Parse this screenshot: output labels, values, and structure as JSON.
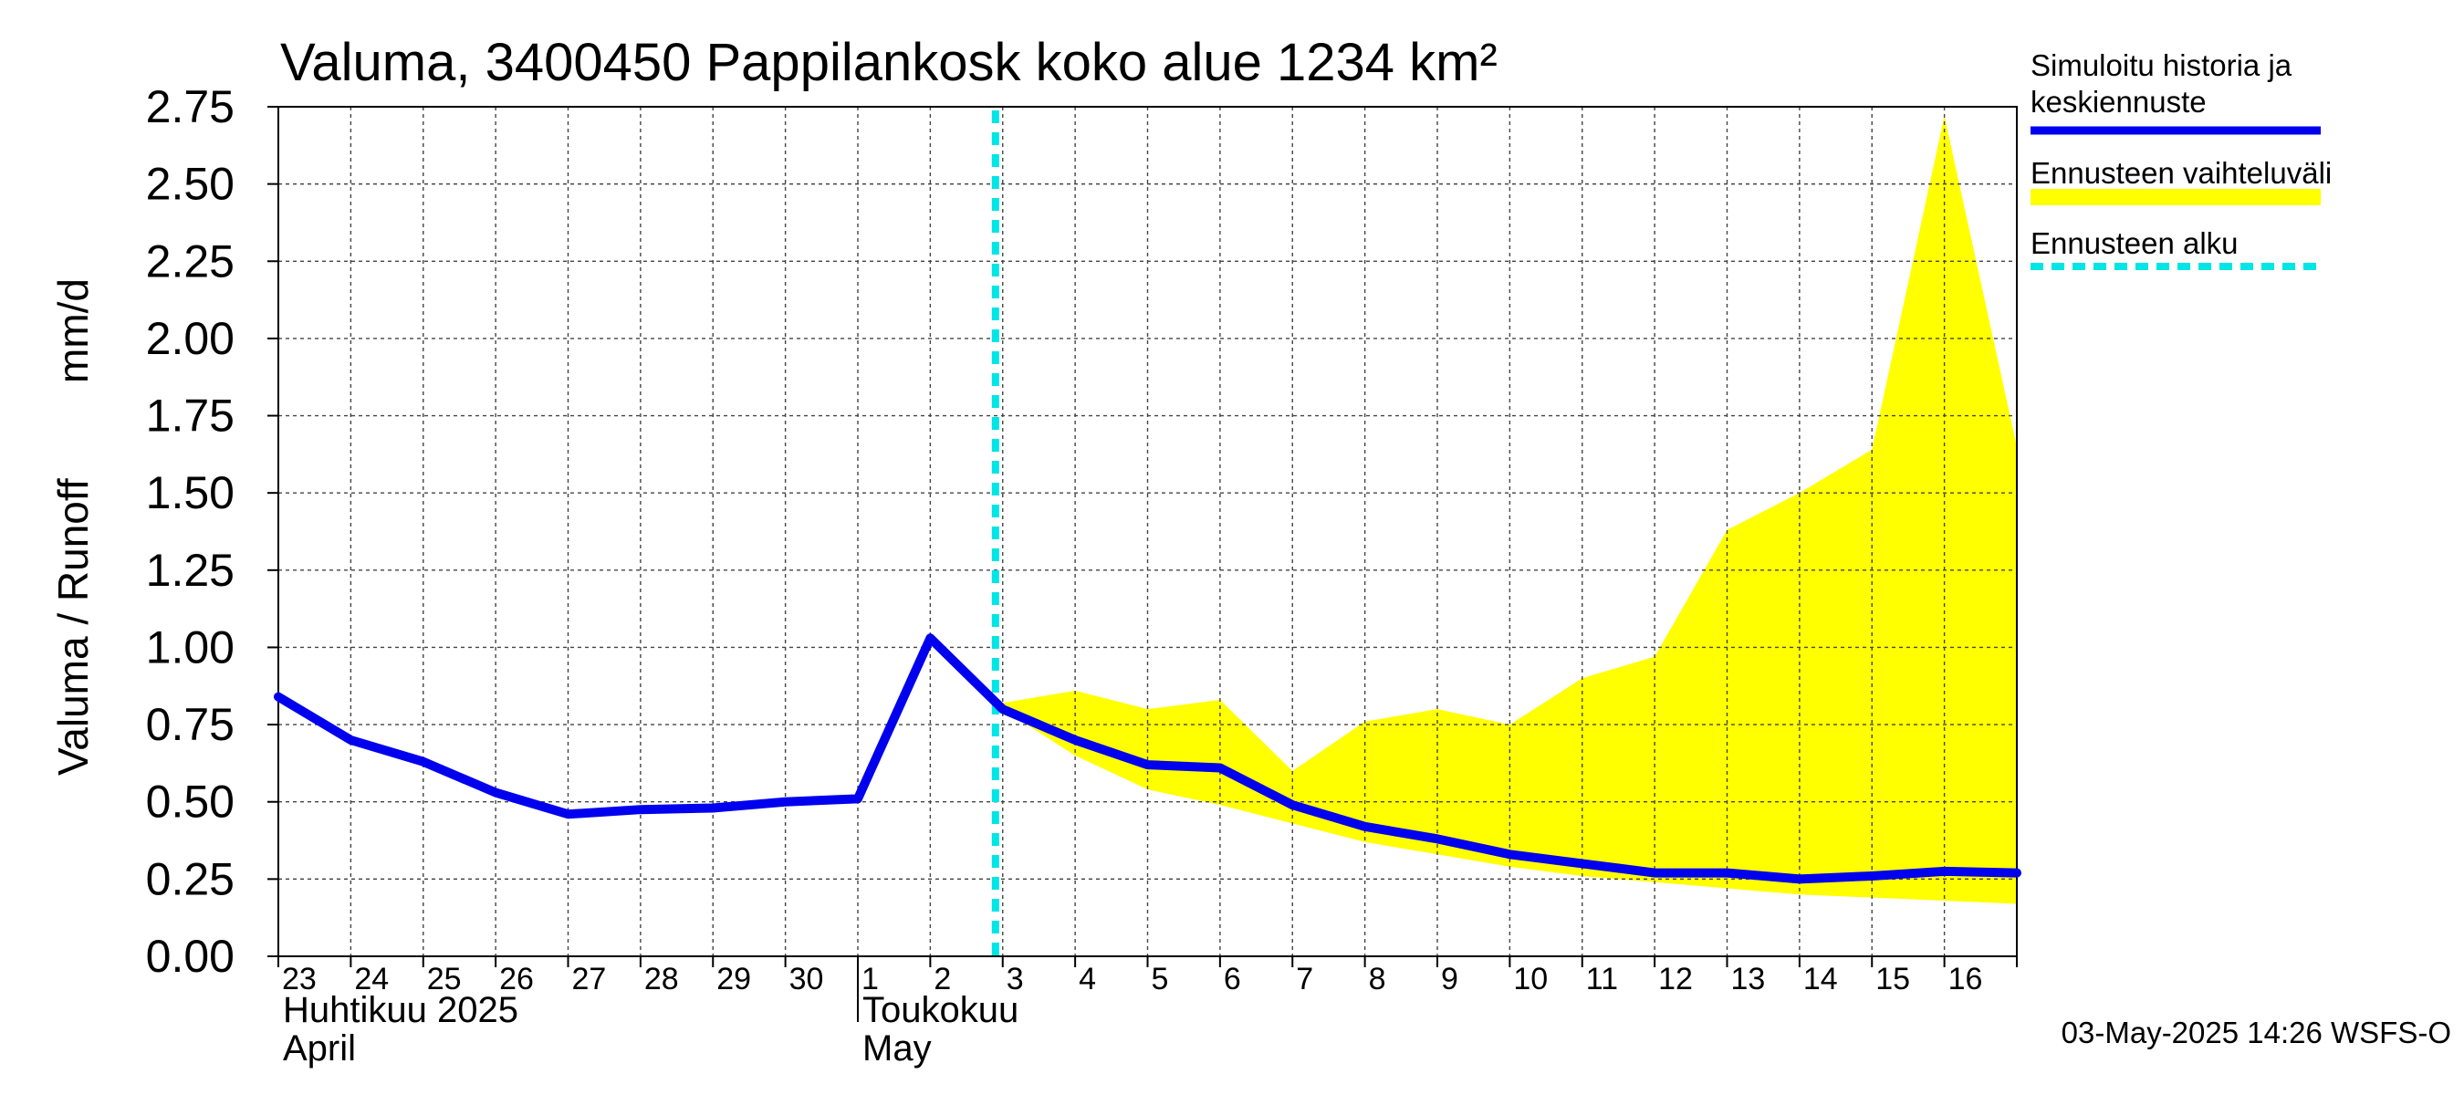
{
  "chart_data": {
    "type": "line",
    "title": "Valuma, 3400450 Pappilankosk koko alue 1234 km²",
    "ylabel_left": "Valuma / Runoff",
    "ylabel_right": "mm/d",
    "ylim": [
      0,
      2.75
    ],
    "yticks": [
      "0.00",
      "0.25",
      "0.50",
      "0.75",
      "1.00",
      "1.25",
      "1.50",
      "1.75",
      "2.00",
      "2.25",
      "2.50",
      "2.75"
    ],
    "xticks": [
      "23",
      "24",
      "25",
      "26",
      "27",
      "28",
      "29",
      "30",
      "1",
      "2",
      "3",
      "4",
      "5",
      "6",
      "7",
      "8",
      "9",
      "10",
      "11",
      "12",
      "13",
      "14",
      "15",
      "16"
    ],
    "month_labels": [
      {
        "line1": "Huhtikuu  2025",
        "line2": "April",
        "start_day": "23"
      },
      {
        "line1": "Toukokuu",
        "line2": "May",
        "start_day": "1"
      }
    ],
    "x_start": "2025-04-23",
    "x_end": "2025-05-17",
    "grid": true,
    "series": [
      {
        "name": "Simuloitu historia ja keskiennuste",
        "color": "#0000ee",
        "points": [
          [
            "2025-04-23",
            0.84
          ],
          [
            "2025-04-24",
            0.7
          ],
          [
            "2025-04-25",
            0.63
          ],
          [
            "2025-04-26",
            0.53
          ],
          [
            "2025-04-27",
            0.46
          ],
          [
            "2025-04-28",
            0.475
          ],
          [
            "2025-04-29",
            0.48
          ],
          [
            "2025-04-30",
            0.5
          ],
          [
            "2025-05-01",
            0.51
          ],
          [
            "2025-05-02",
            1.03
          ],
          [
            "2025-05-03",
            0.8
          ],
          [
            "2025-05-04",
            0.7
          ],
          [
            "2025-05-05",
            0.62
          ],
          [
            "2025-05-06",
            0.61
          ],
          [
            "2025-05-07",
            0.49
          ],
          [
            "2025-05-08",
            0.42
          ],
          [
            "2025-05-09",
            0.38
          ],
          [
            "2025-05-10",
            0.33
          ],
          [
            "2025-05-11",
            0.3
          ],
          [
            "2025-05-12",
            0.27
          ],
          [
            "2025-05-13",
            0.27
          ],
          [
            "2025-05-14",
            0.25
          ],
          [
            "2025-05-15",
            0.26
          ],
          [
            "2025-05-16",
            0.275
          ],
          [
            "2025-05-17",
            0.27
          ]
        ]
      }
    ],
    "band": {
      "name": "Ennusteen vaihteluväli",
      "color": "#ffff00",
      "upper": [
        [
          "2025-05-03",
          0.82
        ],
        [
          "2025-05-04",
          0.86
        ],
        [
          "2025-05-05",
          0.8
        ],
        [
          "2025-05-06",
          0.83
        ],
        [
          "2025-05-07",
          0.6
        ],
        [
          "2025-05-08",
          0.76
        ],
        [
          "2025-05-09",
          0.8
        ],
        [
          "2025-05-10",
          0.75
        ],
        [
          "2025-05-11",
          0.9
        ],
        [
          "2025-05-12",
          0.97
        ],
        [
          "2025-05-13",
          1.38
        ],
        [
          "2025-05-14",
          1.5
        ],
        [
          "2025-05-15",
          1.64
        ],
        [
          "2025-05-16",
          2.72
        ],
        [
          "2025-05-17",
          1.65
        ]
      ],
      "lower": [
        [
          "2025-05-03",
          0.8
        ],
        [
          "2025-05-04",
          0.65
        ],
        [
          "2025-05-05",
          0.54
        ],
        [
          "2025-05-06",
          0.49
        ],
        [
          "2025-05-07",
          0.43
        ],
        [
          "2025-05-08",
          0.37
        ],
        [
          "2025-05-09",
          0.33
        ],
        [
          "2025-05-10",
          0.29
        ],
        [
          "2025-05-11",
          0.26
        ],
        [
          "2025-05-12",
          0.24
        ],
        [
          "2025-05-13",
          0.22
        ],
        [
          "2025-05-14",
          0.2
        ],
        [
          "2025-05-15",
          0.19
        ],
        [
          "2025-05-16",
          0.18
        ],
        [
          "2025-05-17",
          0.17
        ]
      ]
    },
    "forecast_start": {
      "name": "Ennusteen alku",
      "date": "2025-05-02.9",
      "color": "#00e5e5"
    },
    "legend": {
      "placement": "right",
      "items": [
        {
          "line1": "Simuloitu historia ja",
          "line2": "keskiennuste",
          "color": "#0000ee",
          "style": "solid"
        },
        {
          "line1": "Ennusteen vaihteluväli",
          "line2": "",
          "color": "#ffff00",
          "style": "band"
        },
        {
          "line1": "Ennusteen alku",
          "line2": "",
          "color": "#00e5e5",
          "style": "dashed"
        }
      ]
    }
  },
  "footer": {
    "timestamp": "03-May-2025 14:26 WSFS-O"
  }
}
